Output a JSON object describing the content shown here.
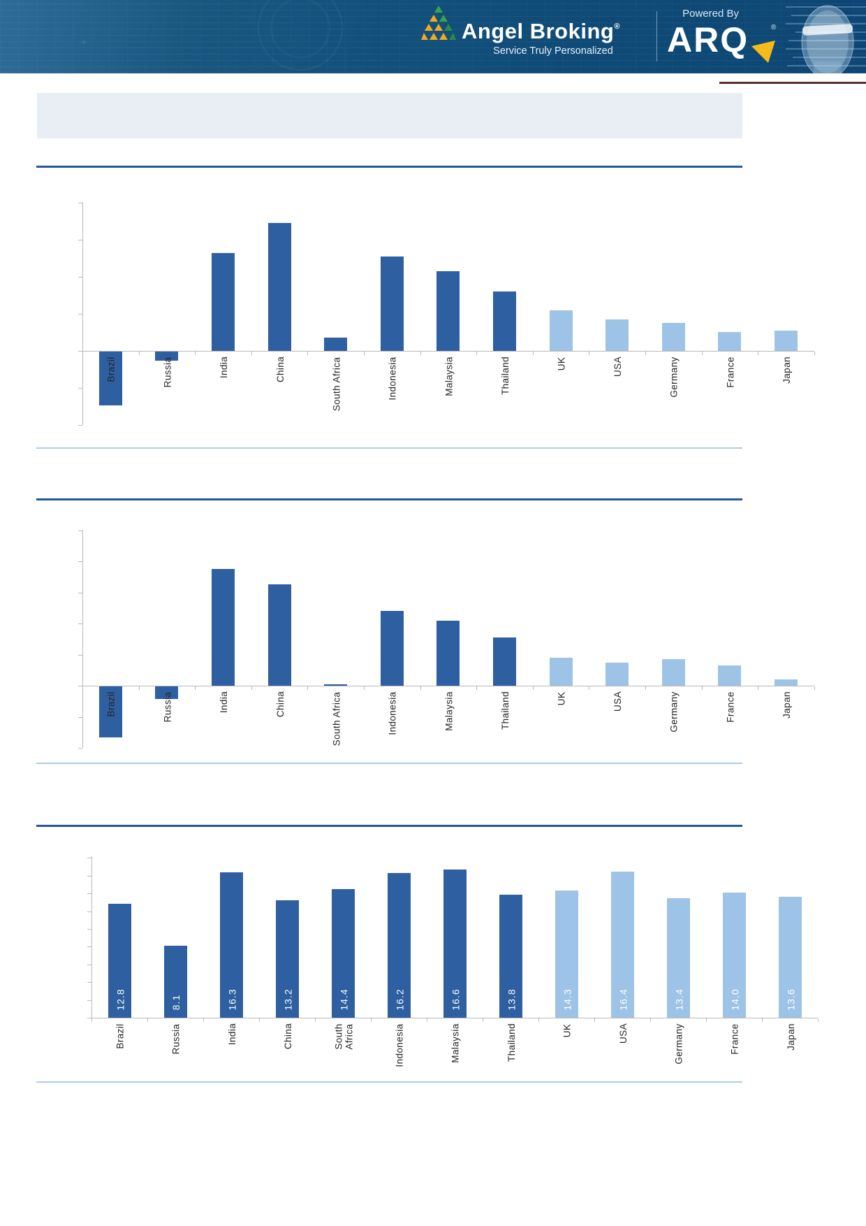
{
  "header": {
    "brand": "Angel Broking",
    "brand_mark": "®",
    "tagline": "Service Truly Personalized",
    "powered_by": "Powered By",
    "product": "ARQ",
    "product_mark": "®"
  },
  "title_band": {
    "text": ""
  },
  "colors": {
    "bar_dark": "#2e5fa0",
    "bar_light": "#9dc3e6",
    "axis_grey": "#b9b9b9",
    "rule_dark_blue": "#2058a0",
    "rule_light_blue": "#b3cbe4",
    "banner_blue": "#12507c",
    "logo_amber": "#f2a91c",
    "logo_green": "#3aa449",
    "arrow_yellow": "#f6bb1b",
    "band_grey_blue": "#e9eef5",
    "value_label_white": "#ffffff"
  },
  "chart_data": [
    {
      "type": "bar",
      "title": "",
      "note": "y-axis unlabeled; values estimated in gridline units",
      "categories": [
        "Brazil",
        "Russia",
        "India",
        "China",
        "South Africa",
        "Indonesia",
        "Malaysia",
        "Thailand",
        "UK",
        "USA",
        "Germany",
        "France",
        "Japan"
      ],
      "values": [
        -1.45,
        -0.25,
        2.65,
        3.45,
        0.35,
        2.55,
        2.15,
        1.6,
        1.1,
        0.85,
        0.75,
        0.5,
        0.55
      ],
      "color_keys": [
        "dark",
        "dark",
        "dark",
        "dark",
        "dark",
        "dark",
        "dark",
        "dark",
        "light",
        "light",
        "light",
        "light",
        "light"
      ],
      "xlabel": "",
      "ylabel": "",
      "ylim": [
        -2,
        4
      ],
      "grid": false,
      "legend": "none",
      "data_labels": null
    },
    {
      "type": "bar",
      "title": "",
      "note": "y-axis unlabeled; values estimated in gridline units",
      "categories": [
        "Brazil",
        "Russia",
        "India",
        "China",
        "South Africa",
        "Indonesia",
        "Malaysia",
        "Thailand",
        "UK",
        "USA",
        "Germany",
        "France",
        "Japan"
      ],
      "values": [
        -1.65,
        -0.4,
        3.75,
        3.25,
        0.05,
        2.4,
        2.1,
        1.55,
        0.9,
        0.75,
        0.85,
        0.65,
        0.2
      ],
      "color_keys": [
        "dark",
        "dark",
        "dark",
        "dark",
        "dark",
        "dark",
        "dark",
        "dark",
        "light",
        "light",
        "light",
        "light",
        "light"
      ],
      "xlabel": "",
      "ylabel": "",
      "ylim": [
        -2,
        5
      ],
      "grid": false,
      "legend": "none",
      "data_labels": null
    },
    {
      "type": "bar",
      "title": "",
      "note": "values shown as rotated white labels inside bars",
      "categories": [
        "Brazil",
        "Russia",
        "India",
        "China",
        "South\nAfrica",
        "Indonesia",
        "Malaysia",
        "Thailand",
        "UK",
        "USA",
        "Germany",
        "France",
        "Japan"
      ],
      "values": [
        12.8,
        8.1,
        16.3,
        13.2,
        14.4,
        16.2,
        16.6,
        13.8,
        14.3,
        16.4,
        13.4,
        14.0,
        13.6
      ],
      "color_keys": [
        "dark",
        "dark",
        "dark",
        "dark",
        "dark",
        "dark",
        "dark",
        "dark",
        "light",
        "light",
        "light",
        "light",
        "light"
      ],
      "xlabel": "",
      "ylabel": "",
      "ylim": [
        0,
        18
      ],
      "grid": false,
      "legend": "none",
      "data_labels": [
        "12.8",
        "8.1",
        "16.3",
        "13.2",
        "14.4",
        "16.2",
        "16.6",
        "13.8",
        "14.3",
        "16.4",
        "13.4",
        "14.0",
        "13.6"
      ]
    }
  ]
}
